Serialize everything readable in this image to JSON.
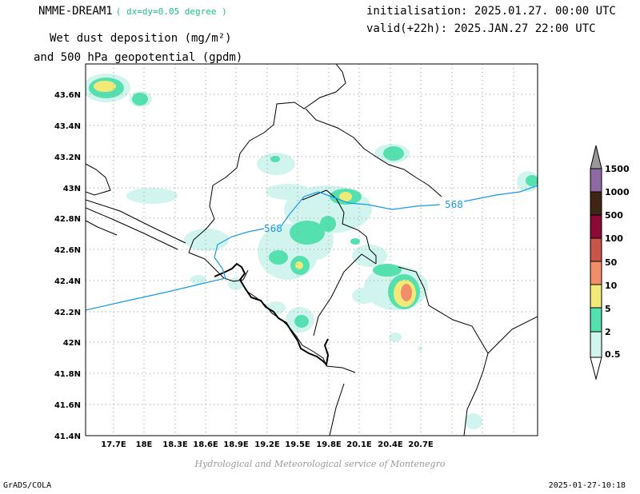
{
  "header": {
    "model": "NMME-DREAM1",
    "resolution": "( dx=dy=0.05 degree )",
    "field_line1": "Wet dust deposition (mg/m²)",
    "field_line2": "and 500 hPa geopotential (gpdm)",
    "init": "initialisation: 2025.01.27. 00:00 UTC",
    "valid": "valid(+22h): 2025.JAN.27 22:00 UTC"
  },
  "map": {
    "lon_range": [
      17.5,
      21.0
    ],
    "lat_range": [
      41.4,
      43.8
    ],
    "x_ticks": [
      "17.7E",
      "18E",
      "18.3E",
      "18.6E",
      "18.9E",
      "19.2E",
      "19.5E",
      "19.8E",
      "20.1E",
      "20.4E",
      "20.7E"
    ],
    "y_ticks": [
      "41.4N",
      "41.6N",
      "41.8N",
      "42N",
      "42.2N",
      "42.4N",
      "42.6N",
      "42.8N",
      "43N",
      "43.2N",
      "43.4N",
      "43.6N"
    ],
    "grid": true,
    "contour_labels": [
      "568",
      "568",
      "568"
    ]
  },
  "colorbar": {
    "levels": [
      "0.5",
      "2",
      "5",
      "10",
      "50",
      "100",
      "500",
      "1000",
      "1500"
    ],
    "colors": [
      "#d2f4ee",
      "#55e0b0",
      "#f2ea78",
      "#ef8e68",
      "#c8554a",
      "#8a0a35",
      "#3e2515",
      "#8e6aa3",
      "#999999"
    ]
  },
  "footer": {
    "credit": "Hydrological and Meteorological service of Montenegro",
    "software": "GrADS/COLA",
    "timestamp": "2025-01-27-10:18"
  }
}
